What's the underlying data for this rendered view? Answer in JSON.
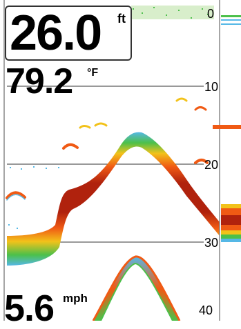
{
  "readouts": {
    "depth": {
      "value": "26.0",
      "unit": "ft"
    },
    "temperature": {
      "value": "79.2",
      "unit": "°F"
    },
    "speed": {
      "value": "5.6",
      "unit": "mph"
    }
  },
  "depth_scale": {
    "labels": [
      "0",
      "10",
      "20",
      "30",
      "40"
    ]
  },
  "colors": {
    "background": "#ffffff",
    "scale_line": "#333333",
    "bottom_strong": "#b0220d",
    "bottom_mid": "#f05a14",
    "bottom_warm": "#f2c21a",
    "bottom_weak": "#4cc04a",
    "bottom_faint": "#55b8e6",
    "surface_clutter": "#8fcf6a"
  }
}
